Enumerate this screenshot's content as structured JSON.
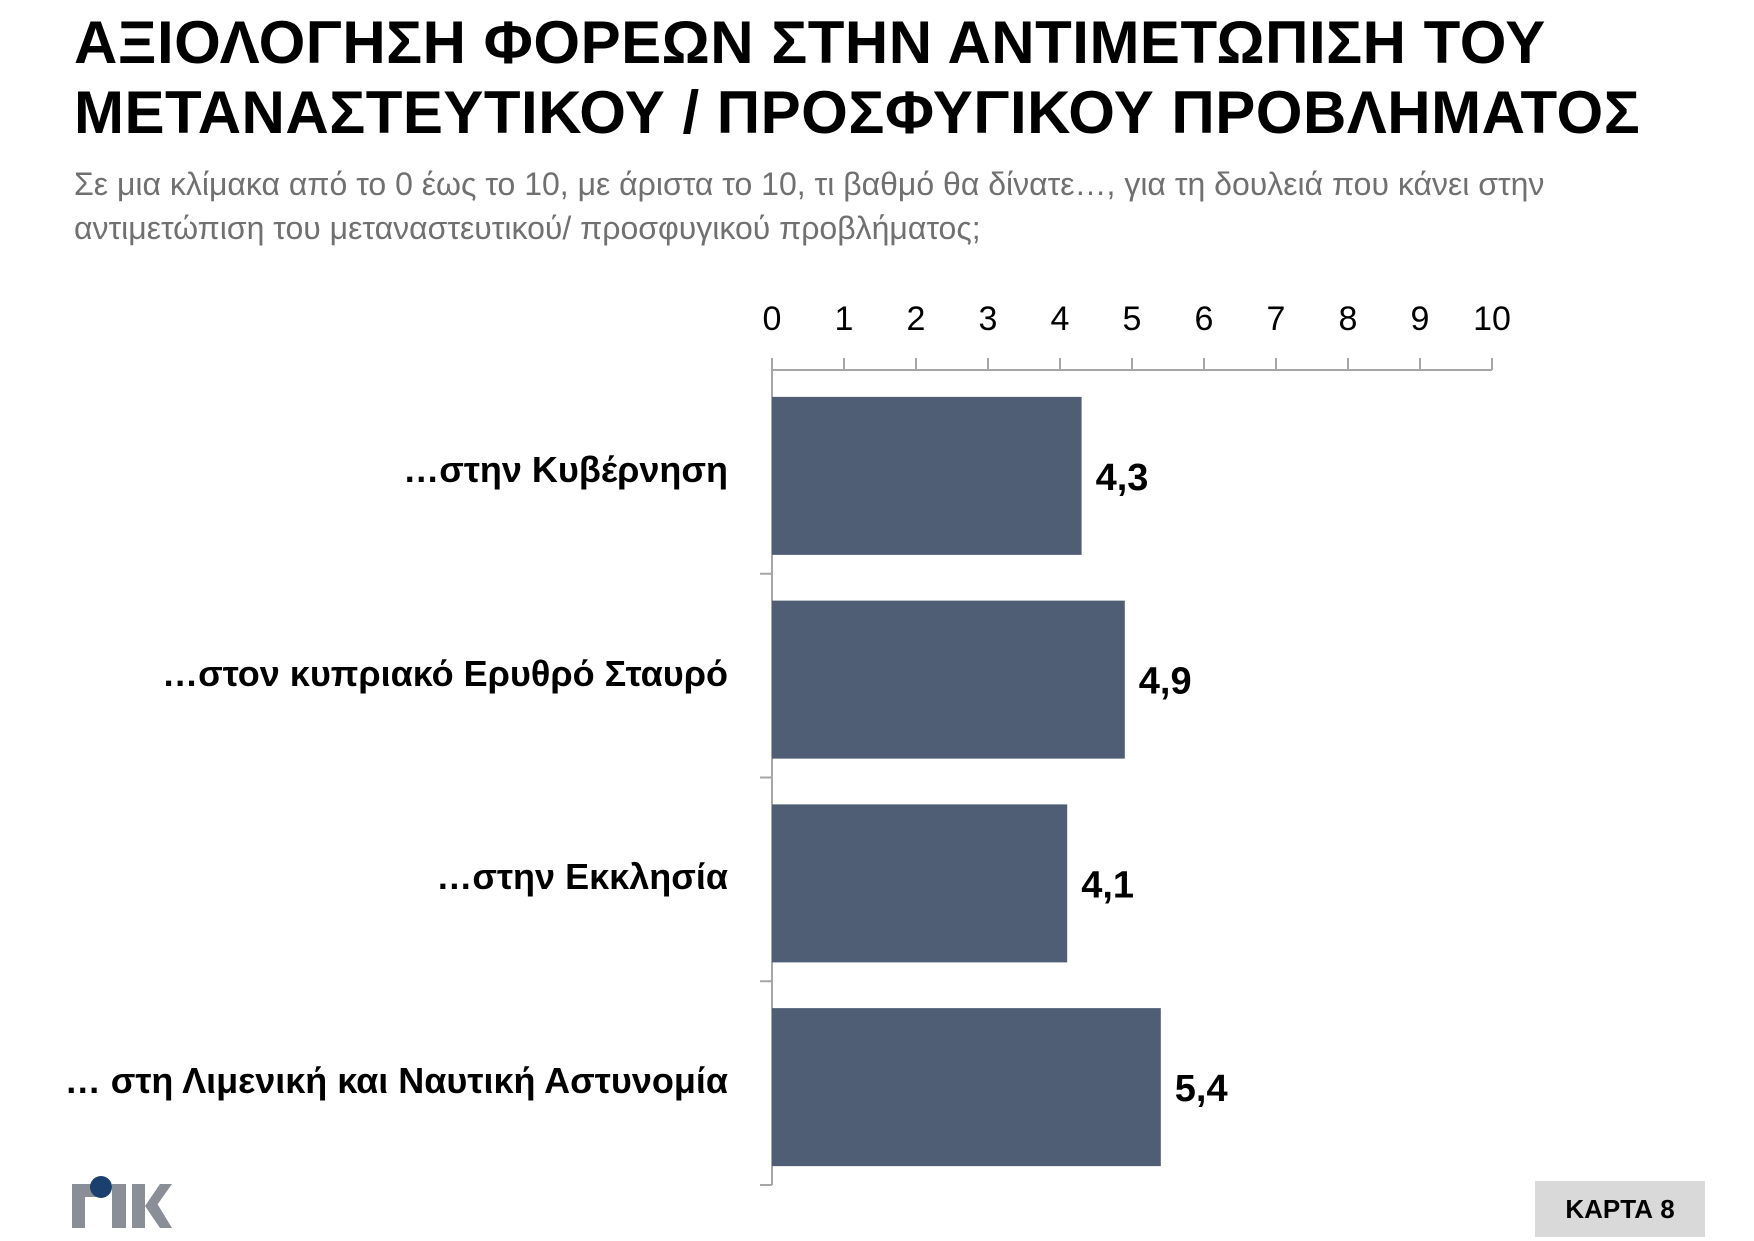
{
  "header": {
    "title": "ΑΞΙΟΛΟΓΗΣΗ ΦΟΡΕΩΝ ΣΤΗΝ ΑΝΤΙΜΕΤΩΠΙΣΗ ΤΟΥ ΜΕΤΑΝΑΣΤΕΥΤΙΚΟΥ / ΠΡΟΣΦΥΓΙΚΟΥ ΠΡΟΒΛΗΜΑΤΟΣ",
    "subtitle": "Σε μια κλίμακα από το 0 έως το 10, με άριστα το 10, τι βαθμό θα δίνατε…, για τη δουλειά που κάνει στην αντιμετώπιση του μεταναστευτικού/ προσφυγικού προβλήματος;"
  },
  "chart_data": {
    "type": "bar",
    "orientation": "horizontal",
    "categories": [
      "…στην Κυβέρνηση",
      "…στον κυπριακό Ερυθρό Σταυρό",
      "…στην Εκκλησία",
      "… στη Λιμενική και Ναυτική Αστυνομία"
    ],
    "values": [
      4.3,
      4.9,
      4.1,
      5.4
    ],
    "value_labels": [
      "4,3",
      "4,9",
      "4,1",
      "5,4"
    ],
    "xlim": [
      0,
      10
    ],
    "x_ticks": [
      "0",
      "1",
      "2",
      "3",
      "4",
      "5",
      "6",
      "7",
      "8",
      "9",
      "10"
    ],
    "axis_position": "top",
    "grid": false,
    "bar_color": "#4f5d75",
    "axis_color": "#a6a6a6"
  },
  "footer": {
    "logo_text": "RIK",
    "logo_colors": [
      "#8a8f97",
      "#1b3f6e"
    ],
    "badge": "ΚΑΡΤΑ 8"
  }
}
